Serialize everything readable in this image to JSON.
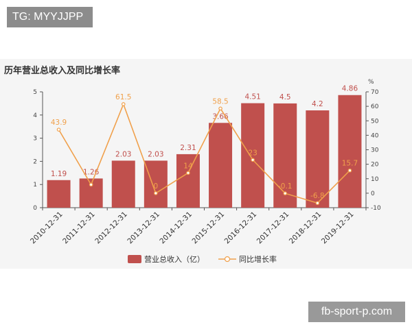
{
  "tag_text": "TG: MYYJJPP",
  "watermark_text": "fb-sport-p.com",
  "colors": {
    "bar": "#c0504d",
    "line": "#f0a04b",
    "panel": "#f5f5f5"
  },
  "chart_data": {
    "type": "bar",
    "title": "历年营业总收入及同比增长率",
    "categories": [
      "2010-12-31",
      "2011-12-31",
      "2012-12-31",
      "2013-12-31",
      "2014-12-31",
      "2015-12-31",
      "2016-12-31",
      "2017-12-31",
      "2018-12-31",
      "2019-12-31"
    ],
    "series": [
      {
        "name": "营业总收入（亿）",
        "type": "bar",
        "axis": "left",
        "values": [
          1.19,
          1.26,
          2.03,
          2.03,
          2.31,
          3.66,
          4.51,
          4.5,
          4.2,
          4.86
        ],
        "labels": [
          "1.19",
          "1.26",
          "2.03",
          "2.03",
          "2.31",
          "3.66",
          "4.51",
          "4.5",
          "4.2",
          "4.86"
        ]
      },
      {
        "name": "同比增长率",
        "type": "line",
        "axis": "right",
        "values": [
          43.9,
          5.9,
          61.5,
          0,
          14,
          58.5,
          23,
          -0.1,
          -6.8,
          15.7
        ],
        "labels": [
          "43.9",
          "",
          "61.5",
          "0",
          "14",
          "58.5",
          "23",
          "-0.1",
          "-6.8",
          "15.7"
        ]
      }
    ],
    "y_left": {
      "ylim": [
        0,
        5
      ],
      "ticks": [
        "0",
        "1",
        "2",
        "3",
        "4",
        "5"
      ]
    },
    "y_right": {
      "label": "%",
      "ylim": [
        -10,
        70
      ],
      "ticks": [
        "-10",
        "0",
        "10",
        "20",
        "30",
        "40",
        "50",
        "60",
        "70"
      ]
    },
    "legend_position": "bottom-center"
  }
}
